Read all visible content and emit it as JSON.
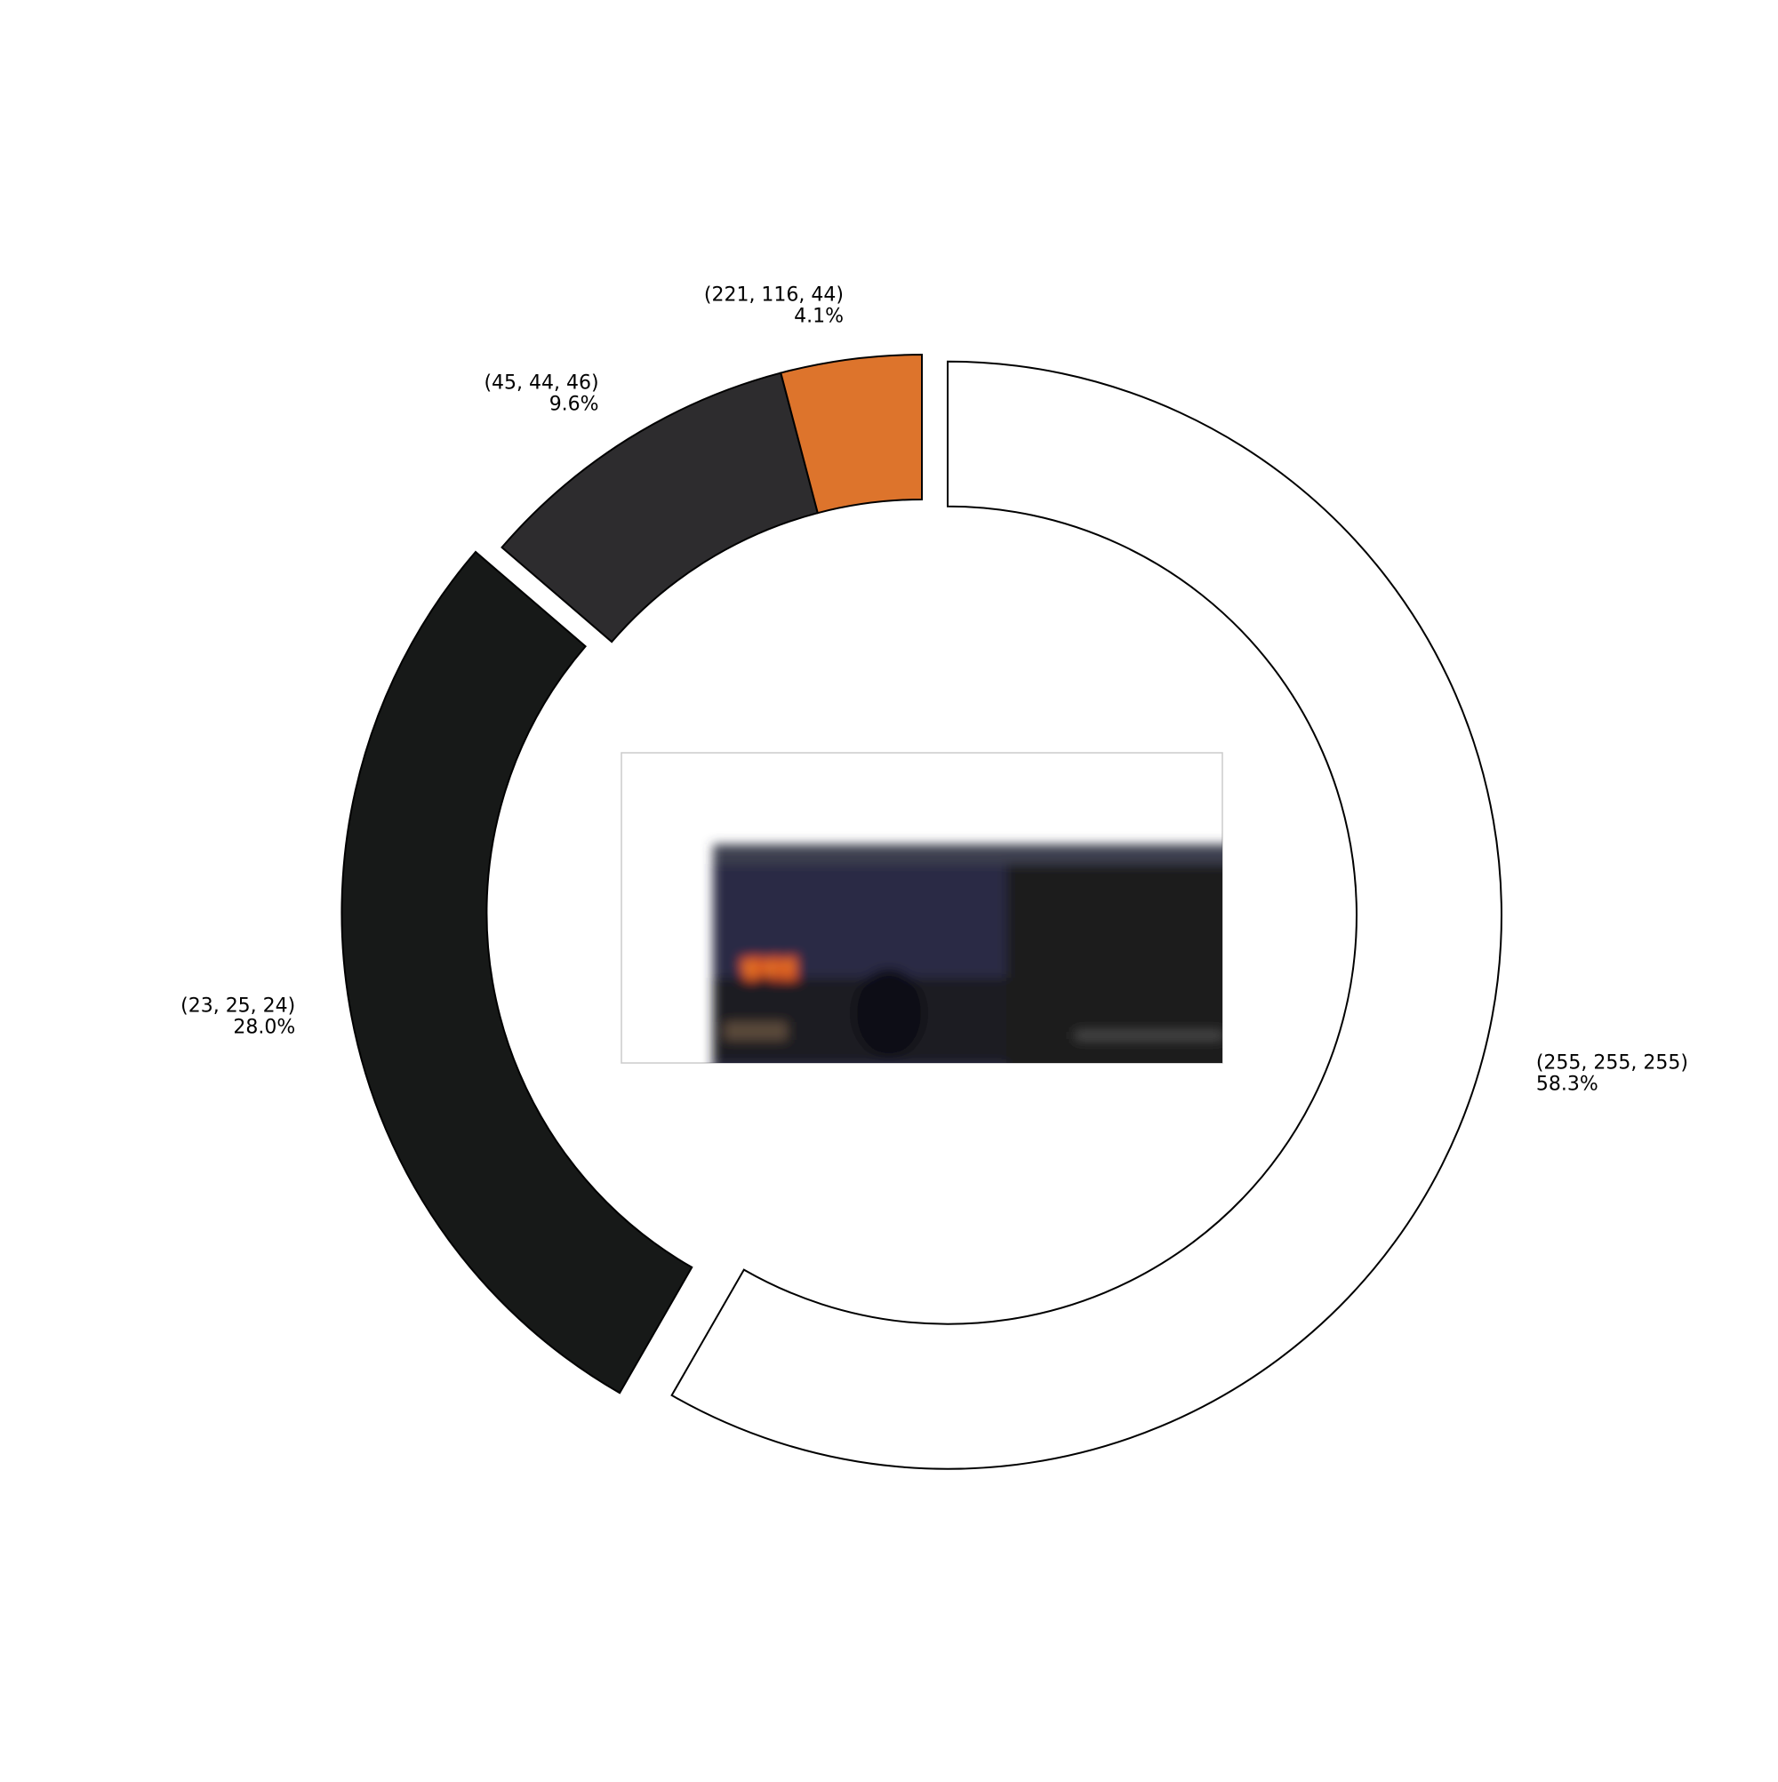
{
  "chart_data": {
    "type": "pie",
    "variant": "donut",
    "slices": [
      {
        "label": "(255, 255, 255)",
        "percent_label": "58.3%",
        "value": 58.3,
        "color": "#ffffff",
        "exploded": true
      },
      {
        "label": "(23, 25, 24)",
        "percent_label": "28.0%",
        "value": 28.0,
        "color": "#171918",
        "exploded": true
      },
      {
        "label": "(45, 44, 46)",
        "percent_label": "9.6%",
        "value": 9.6,
        "color": "#2d2c2e",
        "exploded": false
      },
      {
        "label": "(221, 116, 44)",
        "percent_label": "4.1%",
        "value": 4.1,
        "color": "#dd742c",
        "exploded": false
      }
    ],
    "start": "top",
    "direction": "clockwise",
    "center_image": {
      "description": "blurred thumbnail with orange Korean title lettering on a dark background",
      "text": "방과전"
    }
  }
}
